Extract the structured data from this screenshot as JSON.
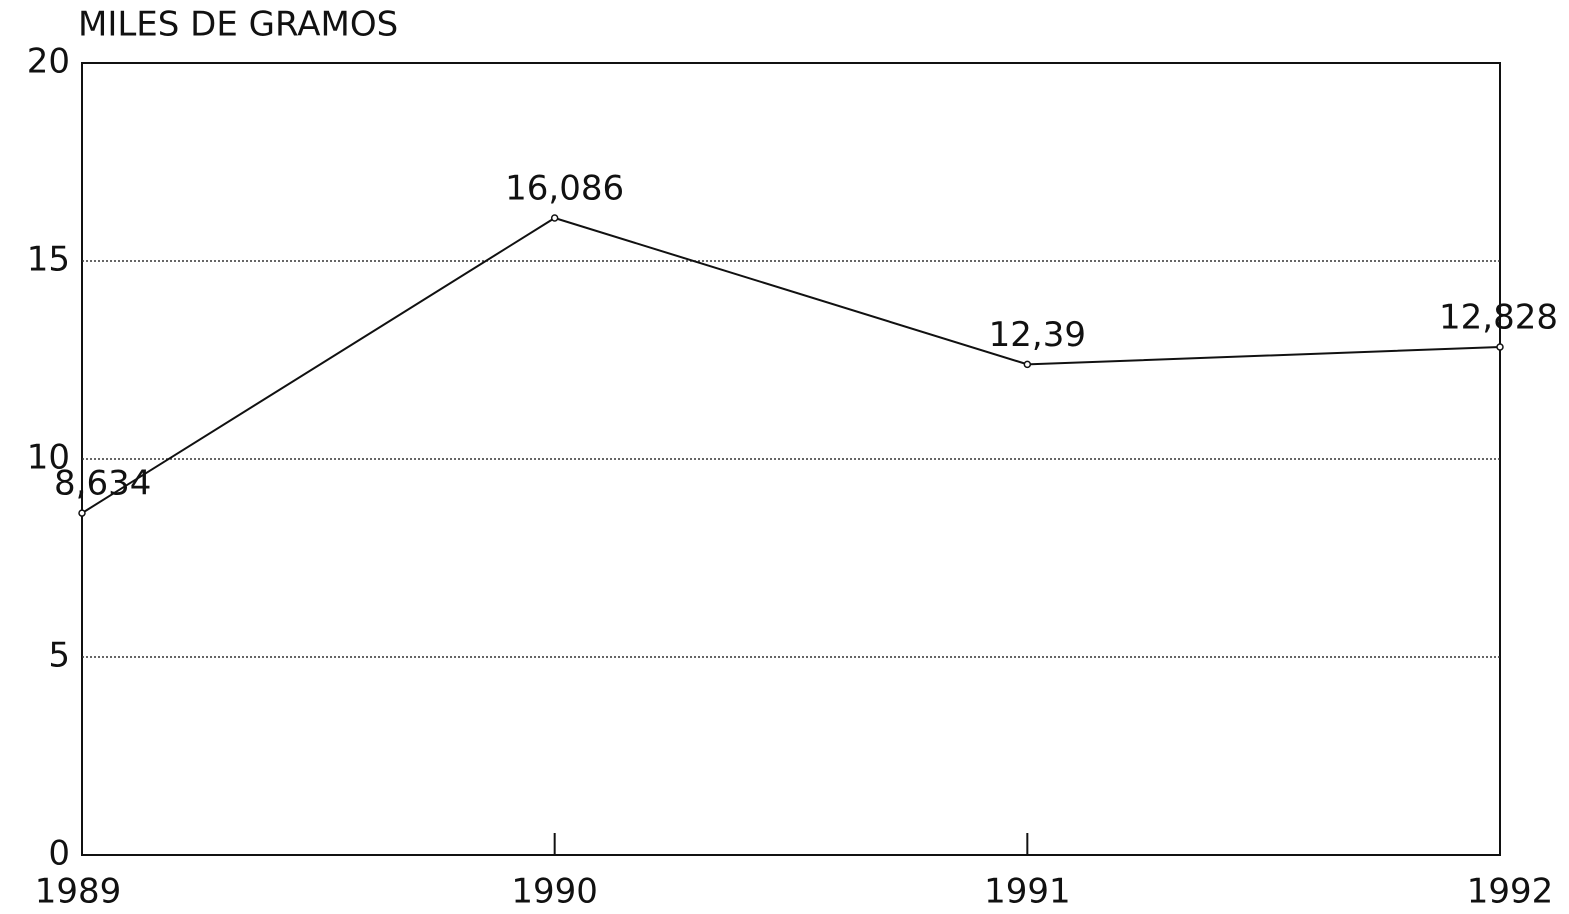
{
  "chart_data": {
    "type": "line",
    "y_label": "MILES DE GRAMOS",
    "categories": [
      "1989",
      "1990",
      "1991",
      "1992"
    ],
    "values": [
      8.634,
      16.086,
      12.39,
      12.828
    ],
    "value_labels": [
      "8,634",
      "16,086",
      "12,39",
      "12,828"
    ],
    "color": "#111111",
    "ylim": [
      0,
      20
    ],
    "yticks": [
      0,
      5,
      10,
      15,
      20
    ],
    "grid": true
  }
}
